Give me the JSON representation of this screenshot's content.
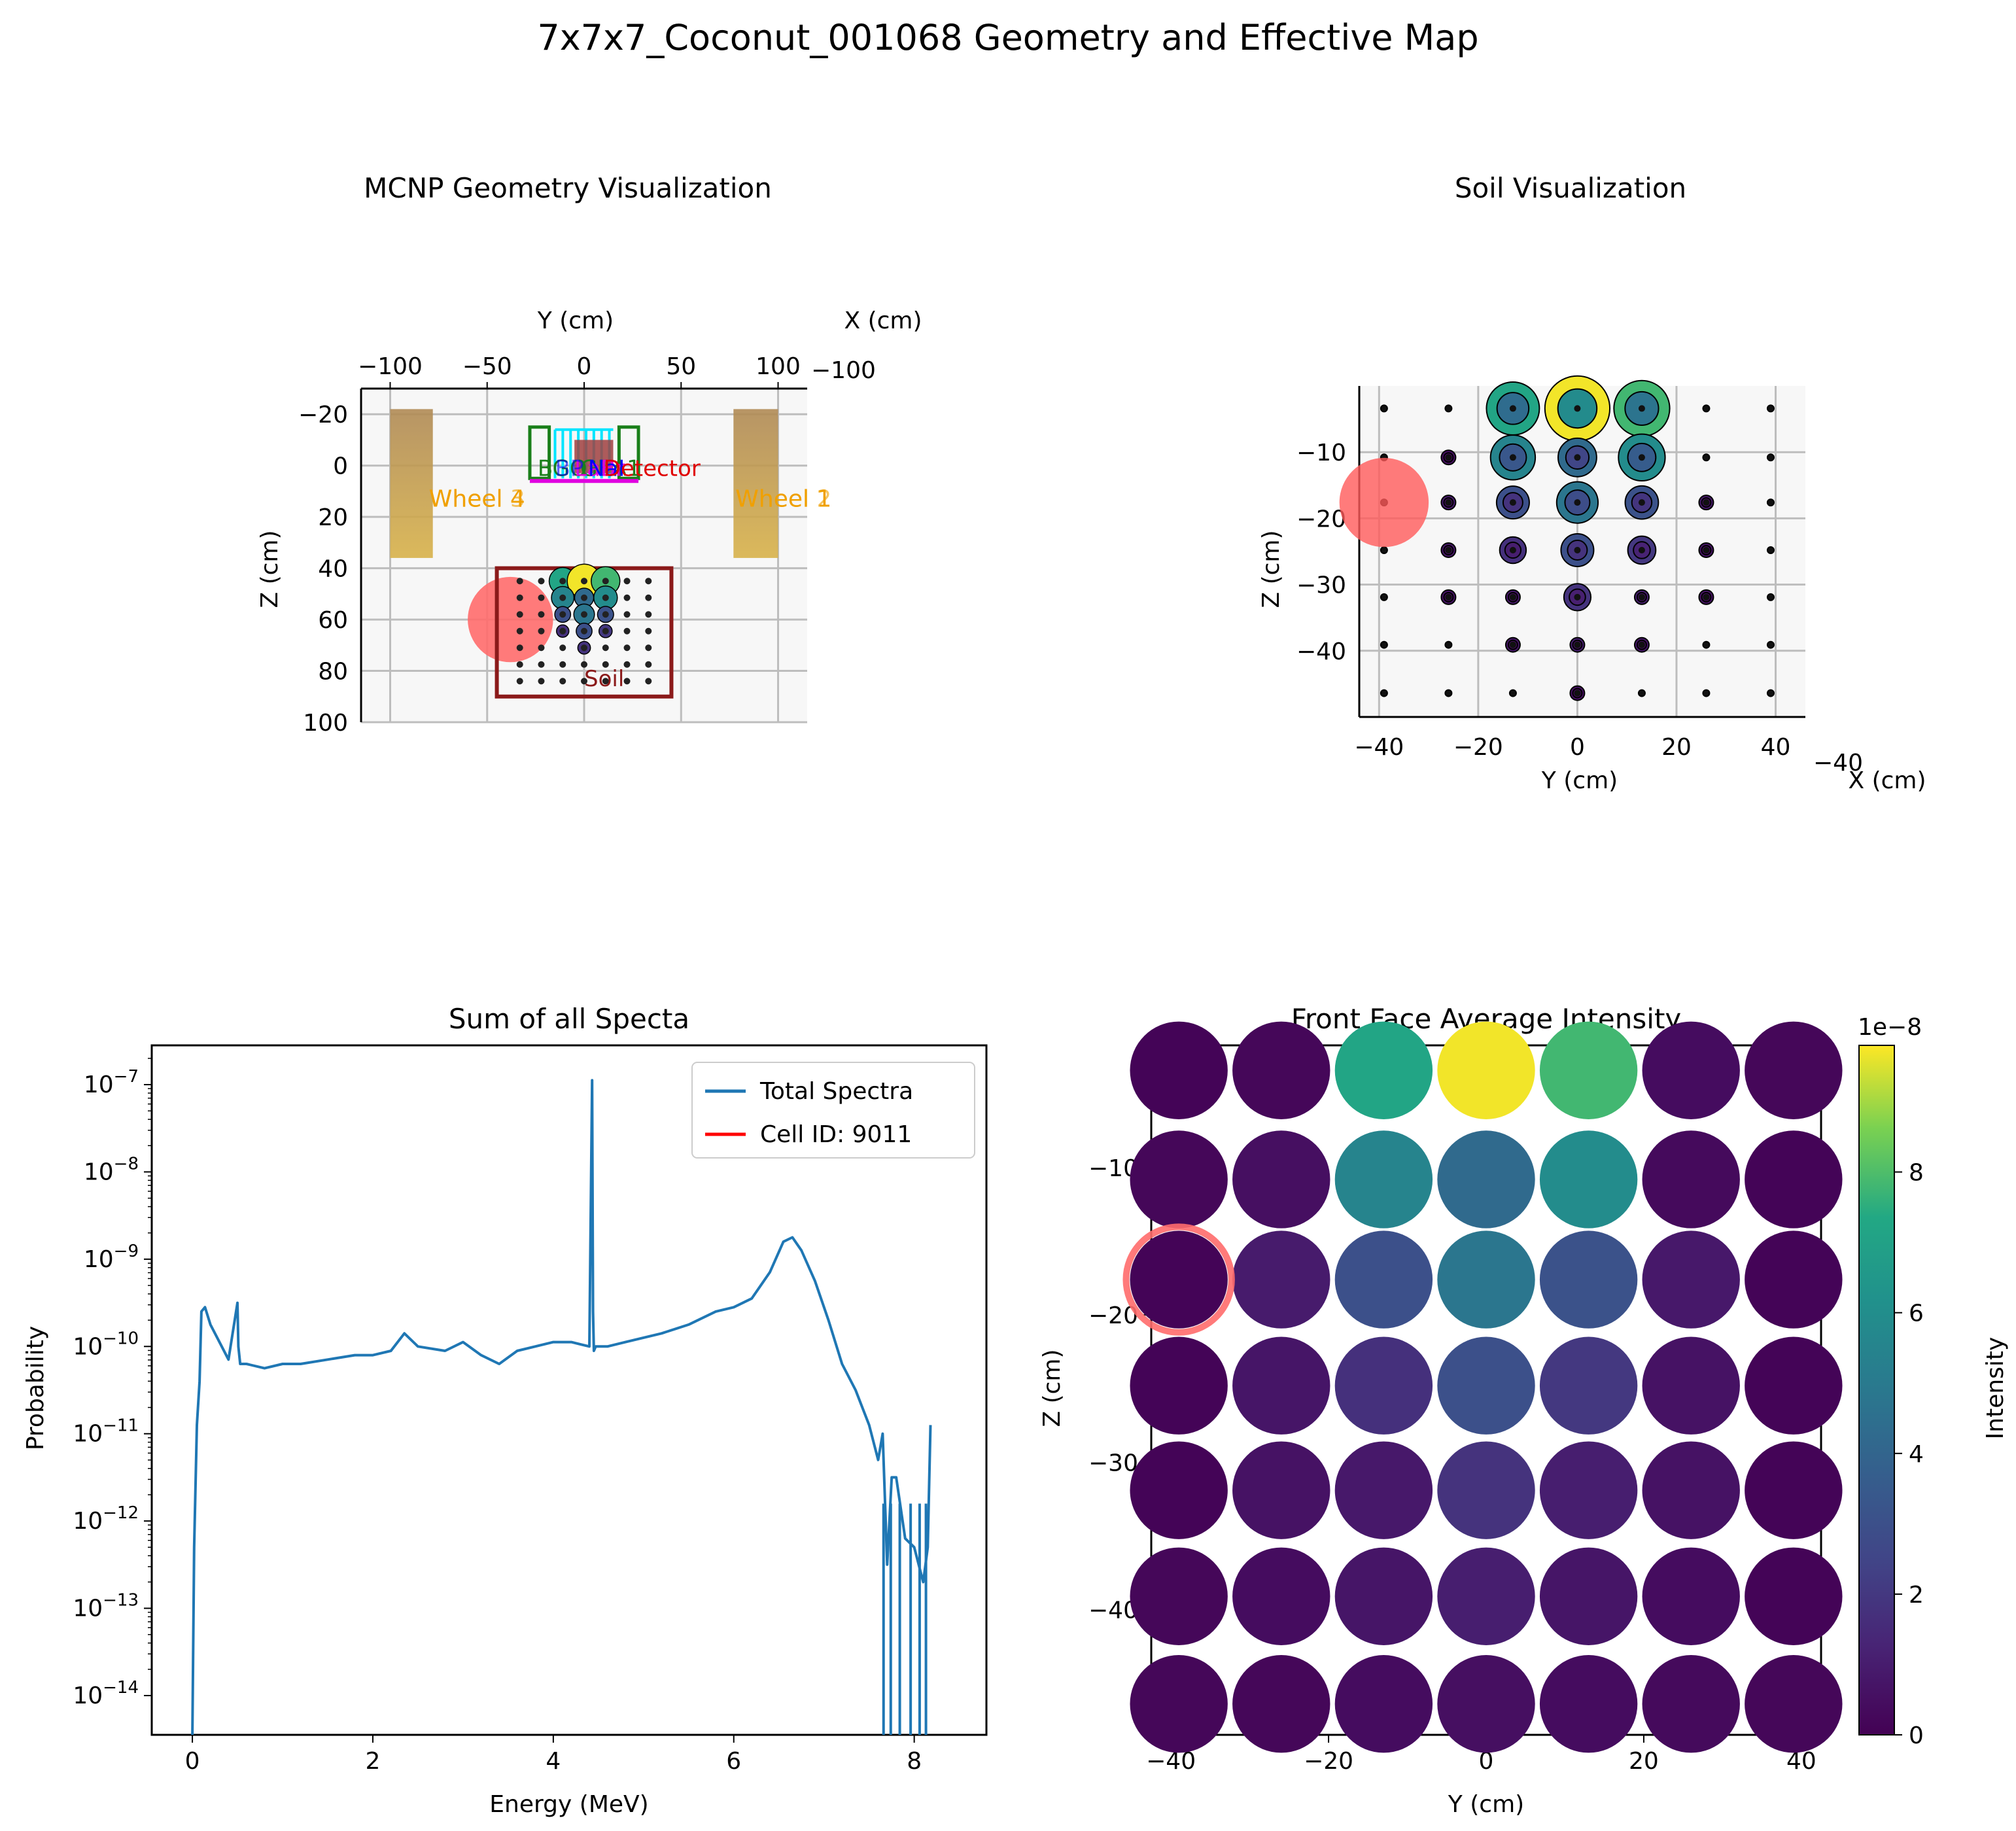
{
  "figure_title": "7x7x7_Coconut_001068 Geometry and Effective Map",
  "colors": {
    "viridis_low": "#440154",
    "viridis_mid": "#21918c",
    "viridis_high": "#fde725",
    "spectrum_line": "#1f77b4",
    "cell_line": "#ff0000",
    "highlight": "#ff6b6b",
    "wheel": "#c8a050",
    "soil_box": "#8b1a1a",
    "frame": "#7a1a1a"
  },
  "chart_data": [
    {
      "id": "geometry",
      "type": "scatter",
      "title": "MCNP Geometry Visualization",
      "xlabel": "Y (cm)",
      "zlabel": "X (cm)",
      "ylabel": "Z (cm)",
      "xlim": [
        -115,
        115
      ],
      "ylim": [
        100,
        -30
      ],
      "xticks": [
        -100,
        -50,
        0,
        50,
        100
      ],
      "yticks": [
        -20,
        0,
        20,
        40,
        60,
        80,
        100
      ],
      "xticks_labels": [
        "−100",
        "−50",
        "0",
        "50",
        "100"
      ],
      "yticks_labels": [
        "−20",
        "0",
        "20",
        "40",
        "60",
        "80",
        "100"
      ],
      "z_tick_labels": "−100",
      "labels": {
        "wheel_left": "Wheel 4",
        "wheel_left2": "Wheel 3",
        "wheel_right": "Wheel 1",
        "wheel_right2": "Wheel 2",
        "bgo": "BGO",
        "detector": "Detector",
        "labr": "LaBr",
        "nai": "NaI",
        "bp": "BP",
        "gea": "GEA1",
        "soil": "Soil"
      },
      "wheels": [
        {
          "y": [
            -100,
            -78
          ],
          "z": [
            -22,
            36
          ]
        },
        {
          "y": [
            77,
            100
          ],
          "z": [
            -22,
            36
          ]
        }
      ],
      "soil_box": {
        "y": [
          -45,
          45
        ],
        "z": [
          40,
          90
        ]
      },
      "highlight": {
        "y": -38,
        "z": 60,
        "r": 22
      }
    },
    {
      "id": "soil",
      "type": "scatter",
      "title": "Soil Visualization",
      "xlabel": "Y (cm)",
      "zlabel": "X (cm)",
      "ylabel": "Z (cm)",
      "xlim": [
        -44,
        46
      ],
      "ylim": [
        0,
        -50
      ],
      "xticks": [
        -40,
        -20,
        0,
        20,
        40
      ],
      "xticks_labels": [
        "−40",
        "−20",
        "0",
        "20",
        "40"
      ],
      "yticks": [
        -10,
        -20,
        -30,
        -40
      ],
      "yticks_labels": [
        "−10",
        "−20",
        "−30",
        "−40"
      ],
      "z_tick_label": "−40",
      "y_positions": [
        -39,
        -26,
        -13,
        0,
        13,
        26,
        39
      ],
      "z_positions": [
        -3.4,
        -10.8,
        -17.6,
        -24.8,
        -31.9,
        -39.1,
        -46.4
      ],
      "highlight": {
        "y": -39,
        "z": -17.6,
        "r": 9
      }
    },
    {
      "id": "spectrum",
      "type": "line",
      "title": "Sum of all Specta",
      "xlabel": "Energy (MeV)",
      "ylabel": "Probability",
      "xlim": [
        -0.45,
        8.8
      ],
      "ylim_log10": [
        -14.45,
        -6.55
      ],
      "xticks": [
        0,
        2,
        4,
        6,
        8
      ],
      "yticks_log10": [
        -14,
        -13,
        -12,
        -11,
        -10,
        -9,
        -8,
        -7
      ],
      "ytick_base": "10",
      "ytick_exponents": [
        "−14",
        "−13",
        "−12",
        "−11",
        "−10",
        "−9",
        "−8",
        "−7"
      ],
      "legend_position": "top-right",
      "legend": [
        {
          "name": "Total Spectra",
          "color": "#1f77b4"
        },
        {
          "name": "Cell ID: 9011",
          "color": "#ff0000"
        }
      ],
      "series": [
        {
          "name": "Total Spectra",
          "x": [
            0.0,
            0.02,
            0.05,
            0.08,
            0.1,
            0.14,
            0.2,
            0.3,
            0.4,
            0.5,
            0.51,
            0.53,
            0.6,
            0.8,
            1.0,
            1.2,
            1.5,
            1.8,
            2.0,
            2.2,
            2.35,
            2.5,
            2.8,
            3.0,
            3.2,
            3.4,
            3.6,
            3.8,
            4.0,
            4.2,
            4.4,
            4.43,
            4.44,
            4.45,
            4.47,
            4.6,
            4.8,
            5.0,
            5.2,
            5.5,
            5.8,
            6.0,
            6.2,
            6.4,
            6.55,
            6.65,
            6.75,
            6.9,
            7.05,
            7.2,
            7.35,
            7.5,
            7.6,
            7.65,
            7.7,
            7.75,
            7.8,
            7.9,
            8.0,
            8.1,
            8.15,
            8.18
          ],
          "y_log10": [
            -14.5,
            -12.3,
            -10.9,
            -10.4,
            -9.6,
            -9.55,
            -9.75,
            -9.95,
            -10.15,
            -9.5,
            -10.0,
            -10.2,
            -10.2,
            -10.25,
            -10.2,
            -10.2,
            -10.15,
            -10.1,
            -10.1,
            -10.05,
            -9.85,
            -10.0,
            -10.05,
            -9.95,
            -10.1,
            -10.2,
            -10.05,
            -10.0,
            -9.95,
            -9.95,
            -10.0,
            -6.95,
            -9.6,
            -10.05,
            -10.0,
            -10.0,
            -9.95,
            -9.9,
            -9.85,
            -9.75,
            -9.6,
            -9.55,
            -9.45,
            -9.15,
            -8.8,
            -8.75,
            -8.9,
            -9.25,
            -9.7,
            -10.2,
            -10.5,
            -10.9,
            -11.3,
            -11.0,
            -12.5,
            -11.5,
            -11.5,
            -12.2,
            -12.3,
            -12.7,
            -12.3,
            -10.9
          ]
        },
        {
          "name": "Cell ID: 9011",
          "x": [],
          "y_log10": []
        }
      ]
    },
    {
      "id": "frontface",
      "type": "heatmap",
      "title": "Front Face Average Intensity",
      "xlabel": "Y (cm)",
      "ylabel": "Z (cm)",
      "xlim": [
        -42.5,
        42.5
      ],
      "ylim": [
        -48.5,
        -1.7
      ],
      "xticks": [
        -40,
        -20,
        0,
        20,
        40
      ],
      "xticks_labels": [
        "−40",
        "−20",
        "0",
        "20",
        "40"
      ],
      "yticks": [
        -10,
        -20,
        -30,
        -40
      ],
      "yticks_labels": [
        "−10",
        "−20",
        "−30",
        "−40"
      ],
      "colorbar_label": "Intensity",
      "colorbar_multiplier": "1e−8",
      "colorbar_range": [
        0,
        9.8
      ],
      "colorbar_ticks": [
        0,
        2,
        4,
        6,
        8
      ],
      "y_positions": [
        -39,
        -26,
        -13,
        0,
        13,
        26,
        39
      ],
      "z_positions": [
        -3.4,
        -10.8,
        -17.6,
        -24.8,
        -31.9,
        -39.1,
        -46.4
      ],
      "values_e8": [
        [
          0.1,
          0.2,
          7.2,
          9.7,
          7.8,
          0.4,
          0.2
        ],
        [
          0.2,
          0.5,
          5.5,
          4.2,
          5.9,
          0.3,
          0.1
        ],
        [
          0.1,
          0.9,
          3.0,
          4.8,
          3.1,
          0.8,
          0.1
        ],
        [
          0.1,
          0.7,
          1.7,
          3.0,
          2.0,
          0.6,
          0.1
        ],
        [
          0.1,
          0.6,
          0.8,
          1.8,
          1.0,
          0.6,
          0.1
        ],
        [
          0.2,
          0.4,
          0.7,
          1.0,
          0.7,
          0.4,
          0.1
        ],
        [
          0.2,
          0.2,
          0.4,
          0.5,
          0.4,
          0.3,
          0.2
        ]
      ],
      "highlight": {
        "y": -39,
        "z": -17.6
      }
    }
  ]
}
